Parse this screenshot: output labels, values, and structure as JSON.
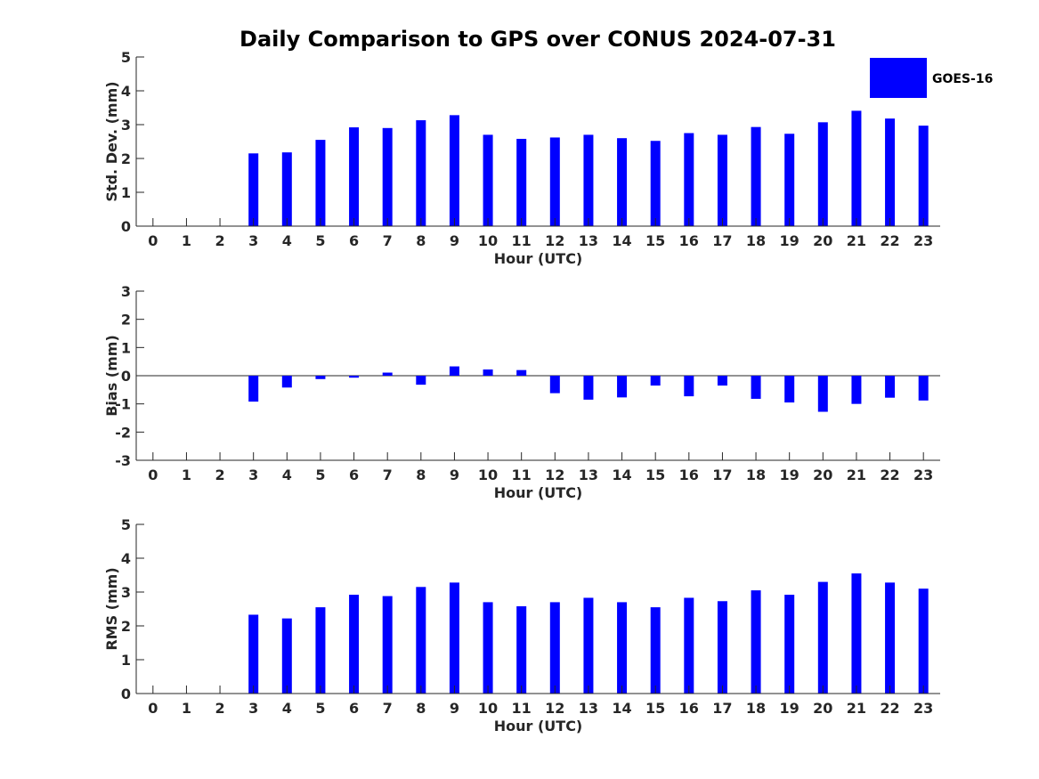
{
  "title": "Daily Comparison to GPS over CONUS 2024-07-31",
  "legend": {
    "label": "GOES-16",
    "color": "#0000ff",
    "position": "top-right"
  },
  "chart_data": [
    {
      "type": "bar",
      "name": "std-dev",
      "xlabel": "Hour (UTC)",
      "ylabel": "Std. Dev. (mm)",
      "ylim": [
        0,
        5
      ],
      "yticks": [
        0,
        1,
        2,
        3,
        4,
        5
      ],
      "xlim": [
        -0.5,
        23.5
      ],
      "categories": [
        "0",
        "1",
        "2",
        "3",
        "4",
        "5",
        "6",
        "7",
        "8",
        "9",
        "10",
        "11",
        "12",
        "13",
        "14",
        "15",
        "16",
        "17",
        "18",
        "19",
        "20",
        "21",
        "22",
        "23"
      ],
      "series": [
        {
          "name": "GOES-16",
          "values": [
            0,
            0,
            0,
            2.15,
            2.18,
            2.55,
            2.92,
            2.9,
            3.13,
            3.28,
            2.7,
            2.58,
            2.62,
            2.7,
            2.6,
            2.52,
            2.75,
            2.7,
            2.93,
            2.73,
            3.07,
            3.41,
            3.18,
            2.97
          ]
        }
      ]
    },
    {
      "type": "bar",
      "name": "bias",
      "xlabel": "Hour (UTC)",
      "ylabel": "Bias (mm)",
      "ylim": [
        -3,
        3
      ],
      "yticks": [
        -3,
        -2,
        -1,
        0,
        1,
        2,
        3
      ],
      "xlim": [
        -0.5,
        23.5
      ],
      "categories": [
        "0",
        "1",
        "2",
        "3",
        "4",
        "5",
        "6",
        "7",
        "8",
        "9",
        "10",
        "11",
        "12",
        "13",
        "14",
        "15",
        "16",
        "17",
        "18",
        "19",
        "20",
        "21",
        "22",
        "23"
      ],
      "series": [
        {
          "name": "GOES-16",
          "values": [
            0,
            0,
            0,
            -0.92,
            -0.42,
            -0.12,
            -0.07,
            0.11,
            -0.32,
            0.33,
            0.22,
            0.2,
            -0.62,
            -0.85,
            -0.77,
            -0.35,
            -0.73,
            -0.35,
            -0.82,
            -0.95,
            -1.28,
            -1.0,
            -0.78,
            -0.88
          ]
        }
      ]
    },
    {
      "type": "bar",
      "name": "rms",
      "xlabel": "Hour (UTC)",
      "ylabel": "RMS (mm)",
      "ylim": [
        0,
        5
      ],
      "yticks": [
        0,
        1,
        2,
        3,
        4,
        5
      ],
      "xlim": [
        -0.5,
        23.5
      ],
      "categories": [
        "0",
        "1",
        "2",
        "3",
        "4",
        "5",
        "6",
        "7",
        "8",
        "9",
        "10",
        "11",
        "12",
        "13",
        "14",
        "15",
        "16",
        "17",
        "18",
        "19",
        "20",
        "21",
        "22",
        "23"
      ],
      "series": [
        {
          "name": "GOES-16",
          "values": [
            0,
            0,
            0,
            2.33,
            2.22,
            2.55,
            2.92,
            2.88,
            3.15,
            3.28,
            2.7,
            2.58,
            2.7,
            2.83,
            2.7,
            2.55,
            2.83,
            2.73,
            3.05,
            2.92,
            3.3,
            3.55,
            3.28,
            3.1
          ]
        }
      ]
    }
  ]
}
